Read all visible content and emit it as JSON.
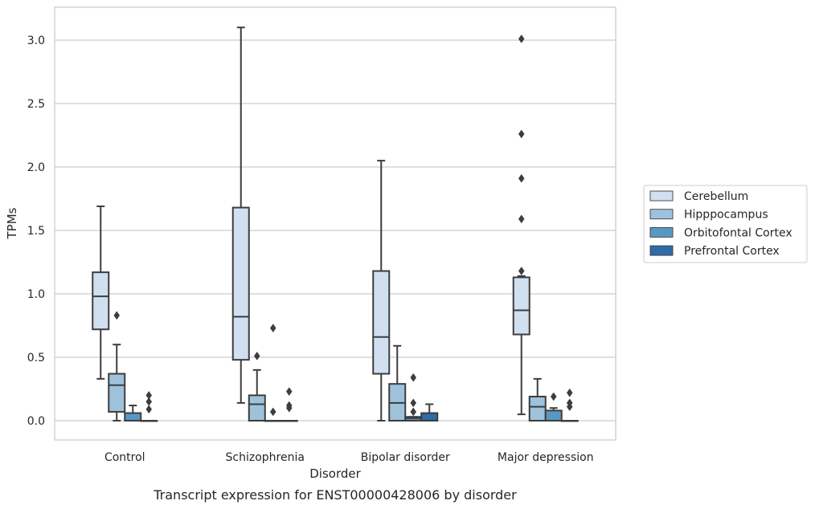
{
  "chart_data": {
    "type": "box",
    "caption": "Transcript expression for ENST00000428006 by disorder",
    "xlabel": "Disorder",
    "ylabel": "TPMs",
    "ylim": [
      -0.15,
      3.25
    ],
    "yticks": [
      "0.0",
      "0.5",
      "1.0",
      "1.5",
      "2.0",
      "2.5",
      "3.0"
    ],
    "grid": true,
    "legend_position": "right",
    "categories": [
      "Control",
      "Schizophrenia",
      "Bipolar disorder",
      "Major depression"
    ],
    "series": [
      {
        "name": "Cerebellum",
        "color": "#d0e0f0",
        "boxes": [
          {
            "whislo": 0.33,
            "q1": 0.72,
            "med": 0.98,
            "q3": 1.17,
            "whishi": 1.69,
            "fliers": []
          },
          {
            "whislo": 0.14,
            "q1": 0.48,
            "med": 0.82,
            "q3": 1.68,
            "whishi": 3.1,
            "fliers": []
          },
          {
            "whislo": 0.0,
            "q1": 0.37,
            "med": 0.66,
            "q3": 1.18,
            "whishi": 2.05,
            "fliers": []
          },
          {
            "whislo": 0.05,
            "q1": 0.68,
            "med": 0.87,
            "q3": 1.13,
            "whishi": 1.14,
            "fliers": [
              1.18,
              1.59,
              1.91,
              2.26,
              3.01
            ]
          }
        ]
      },
      {
        "name": "Hipppocampus",
        "color": "#9ec2dc",
        "boxes": [
          {
            "whislo": 0.0,
            "q1": 0.07,
            "med": 0.28,
            "q3": 0.37,
            "whishi": 0.6,
            "fliers": [
              0.83
            ]
          },
          {
            "whislo": 0.0,
            "q1": 0.0,
            "med": 0.13,
            "q3": 0.2,
            "whishi": 0.4,
            "fliers": [
              0.51
            ]
          },
          {
            "whislo": 0.0,
            "q1": 0.0,
            "med": 0.14,
            "q3": 0.29,
            "whishi": 0.59,
            "fliers": []
          },
          {
            "whislo": 0.0,
            "q1": 0.0,
            "med": 0.11,
            "q3": 0.19,
            "whishi": 0.33,
            "fliers": []
          }
        ]
      },
      {
        "name": "Orbitofontal Cortex",
        "color": "#5a98c4",
        "boxes": [
          {
            "whislo": 0.0,
            "q1": 0.0,
            "med": 0.0,
            "q3": 0.06,
            "whishi": 0.12,
            "fliers": []
          },
          {
            "whislo": 0.0,
            "q1": 0.0,
            "med": 0.0,
            "q3": 0.0,
            "whishi": 0.0,
            "fliers": [
              0.07,
              0.73
            ]
          },
          {
            "whislo": 0.0,
            "q1": 0.0,
            "med": 0.02,
            "q3": 0.03,
            "whishi": 0.03,
            "fliers": [
              0.07,
              0.14,
              0.34
            ]
          },
          {
            "whislo": 0.0,
            "q1": 0.0,
            "med": 0.0,
            "q3": 0.08,
            "whishi": 0.1,
            "fliers": [
              0.19
            ]
          }
        ]
      },
      {
        "name": "Prefrontal Cortex",
        "color": "#2e6ba8",
        "boxes": [
          {
            "whislo": 0.0,
            "q1": 0.0,
            "med": 0.0,
            "q3": 0.0,
            "whishi": 0.0,
            "fliers": [
              0.09,
              0.15,
              0.2
            ]
          },
          {
            "whislo": 0.0,
            "q1": 0.0,
            "med": 0.0,
            "q3": 0.0,
            "whishi": 0.0,
            "fliers": [
              0.1,
              0.12,
              0.23
            ]
          },
          {
            "whislo": 0.0,
            "q1": 0.0,
            "med": 0.0,
            "q3": 0.06,
            "whishi": 0.13,
            "fliers": []
          },
          {
            "whislo": 0.0,
            "q1": 0.0,
            "med": 0.0,
            "q3": 0.0,
            "whishi": 0.0,
            "fliers": [
              0.11,
              0.14,
              0.22
            ]
          }
        ]
      }
    ]
  }
}
